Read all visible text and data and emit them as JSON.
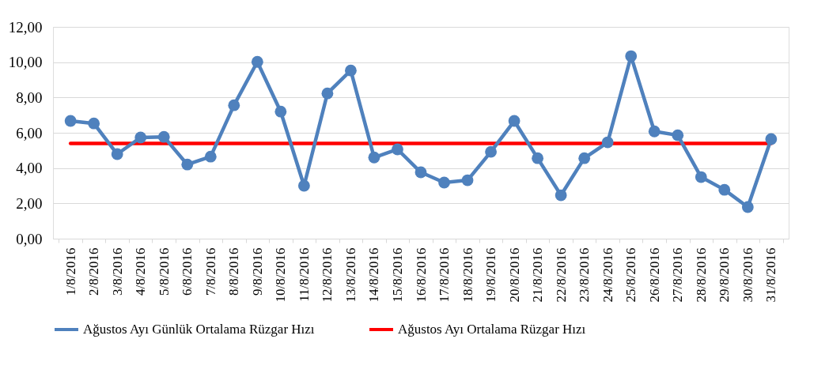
{
  "chart_data": {
    "type": "line",
    "categories": [
      "1/8/2016",
      "2/8/2016",
      "3/8/2016",
      "4/8/2016",
      "5/8/2016",
      "6/8/2016",
      "7/8/2016",
      "8/8/2016",
      "9/8/2016",
      "10/8/2016",
      "11/8/2016",
      "12/8/2016",
      "13/8/2016",
      "14/8/2016",
      "15/8/2016",
      "16/8/2016",
      "17/8/2016",
      "18/8/2016",
      "19/8/2016",
      "20/8/2016",
      "21/8/2016",
      "22/8/2016",
      "23/8/2016",
      "24/8/2016",
      "25/8/2016",
      "26/8/2016",
      "27/8/2016",
      "28/8/2016",
      "29/8/2016",
      "30/8/2016",
      "31/8/2016"
    ],
    "series": [
      {
        "name": "Ağustos Ayı Günlük Ortalama Rüzgar Hızı",
        "color": "#4f81bd",
        "marker": "circle",
        "values": [
          6.67,
          6.53,
          4.79,
          5.73,
          5.77,
          4.2,
          4.65,
          7.56,
          10.02,
          7.2,
          3.0,
          8.23,
          9.53,
          4.6,
          5.06,
          3.76,
          3.18,
          3.31,
          4.92,
          6.67,
          4.56,
          2.46,
          4.56,
          5.46,
          10.34,
          6.08,
          5.86,
          3.49,
          2.77,
          1.79,
          5.64
        ]
      },
      {
        "name": "Ağustos Ayı Ortalama Rüzgar Hızı",
        "color": "#ff0000",
        "marker": "none",
        "values": [
          5.4,
          5.4,
          5.4,
          5.4,
          5.4,
          5.4,
          5.4,
          5.4,
          5.4,
          5.4,
          5.4,
          5.4,
          5.4,
          5.4,
          5.4,
          5.4,
          5.4,
          5.4,
          5.4,
          5.4,
          5.4,
          5.4,
          5.4,
          5.4,
          5.4,
          5.4,
          5.4,
          5.4,
          5.4,
          5.4,
          5.4
        ]
      }
    ],
    "ylim": [
      0,
      12
    ],
    "yticks": [
      {
        "value": 0,
        "label": "0,00"
      },
      {
        "value": 2,
        "label": "2,00"
      },
      {
        "value": 4,
        "label": "4,00"
      },
      {
        "value": 6,
        "label": "6,00"
      },
      {
        "value": 8,
        "label": "8,00"
      },
      {
        "value": 10,
        "label": "10,00"
      },
      {
        "value": 12,
        "label": "12,00"
      }
    ],
    "grid": "y",
    "legend": "bottom"
  }
}
